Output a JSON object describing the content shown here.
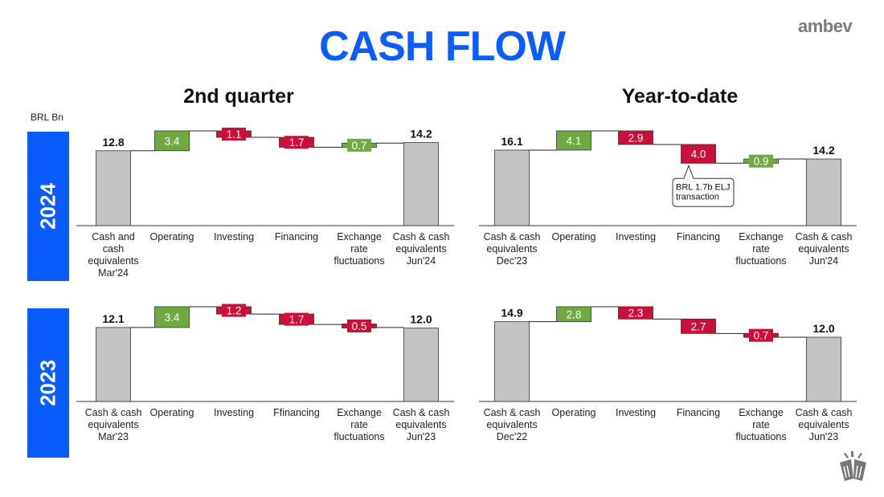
{
  "title": "CASH FLOW",
  "logo": "ambev",
  "unit_label": "BRL Bn",
  "subtitles": {
    "left": "2nd quarter",
    "right": "Year-to-date"
  },
  "years": [
    "2024",
    "2023"
  ],
  "colors": {
    "accent": "#0a5cff",
    "increase": "#70a844",
    "decrease": "#c8103a",
    "total": "#c3c3c3"
  },
  "icon": "beer-toast-icon",
  "chart_data": [
    {
      "type": "waterfall",
      "title": "2nd quarter",
      "row": "2024",
      "categories": [
        [
          "Cash and",
          "cash",
          "equivalents",
          "Mar'24"
        ],
        [
          "Operating"
        ],
        [
          "Investing"
        ],
        [
          "Financing"
        ],
        [
          "Exchange",
          "rate",
          "fluctuations"
        ],
        [
          "Cash & cash",
          "equivalents",
          "Jun'24"
        ]
      ],
      "start": 12.8,
      "deltas": [
        3.4,
        -1.1,
        -1.7,
        0.7
      ],
      "end": 14.2,
      "labels": [
        "12.8",
        "3.4",
        "1.1",
        "1.7",
        "0.7",
        "14.2"
      ]
    },
    {
      "type": "waterfall",
      "title": "Year-to-date",
      "row": "2024",
      "categories": [
        [
          "Cash & cash",
          "equivalents",
          "Dec'23"
        ],
        [
          "Operating"
        ],
        [
          "Investing"
        ],
        [
          "Financing"
        ],
        [
          "Exchange",
          "rate",
          "fluctuations"
        ],
        [
          "Cash & cash",
          "equivalents",
          "Jun'24"
        ]
      ],
      "start": 16.1,
      "deltas": [
        4.1,
        -2.9,
        -4.0,
        0.9
      ],
      "end": 14.2,
      "labels": [
        "16.1",
        "4.1",
        "2.9",
        "4.0",
        "0.9",
        "14.2"
      ],
      "annotation": {
        "category": "Financing",
        "lines": [
          "BRL 1.7b ELJ",
          "transaction"
        ]
      }
    },
    {
      "type": "waterfall",
      "title": "2nd quarter",
      "row": "2023",
      "categories": [
        [
          "Cash & cash",
          "equivalents",
          "Mar'23"
        ],
        [
          "Operating"
        ],
        [
          "Investing"
        ],
        [
          "Ffinancing"
        ],
        [
          "Exchange",
          "rate",
          "fluctuations"
        ],
        [
          "Cash & cash",
          "equivalents",
          "Jun'23"
        ]
      ],
      "start": 12.1,
      "deltas": [
        3.4,
        -1.2,
        -1.7,
        -0.5
      ],
      "end": 12.0,
      "labels": [
        "12.1",
        "3.4",
        "1.2",
        "1.7",
        "0.5",
        "12.0"
      ]
    },
    {
      "type": "waterfall",
      "title": "Year-to-date",
      "row": "2023",
      "categories": [
        [
          "Cash & cash",
          "equivalents",
          "Dec'22"
        ],
        [
          "Operating"
        ],
        [
          "Investing"
        ],
        [
          "Financing"
        ],
        [
          "Exchange",
          "rate",
          "fluctuations"
        ],
        [
          "Cash & cash",
          "equivalents",
          "Jun'23"
        ]
      ],
      "start": 14.9,
      "deltas": [
        2.8,
        -2.3,
        -2.7,
        -0.7
      ],
      "end": 12.0,
      "labels": [
        "14.9",
        "2.8",
        "2.3",
        "2.7",
        "0.7",
        "12.0"
      ]
    }
  ]
}
